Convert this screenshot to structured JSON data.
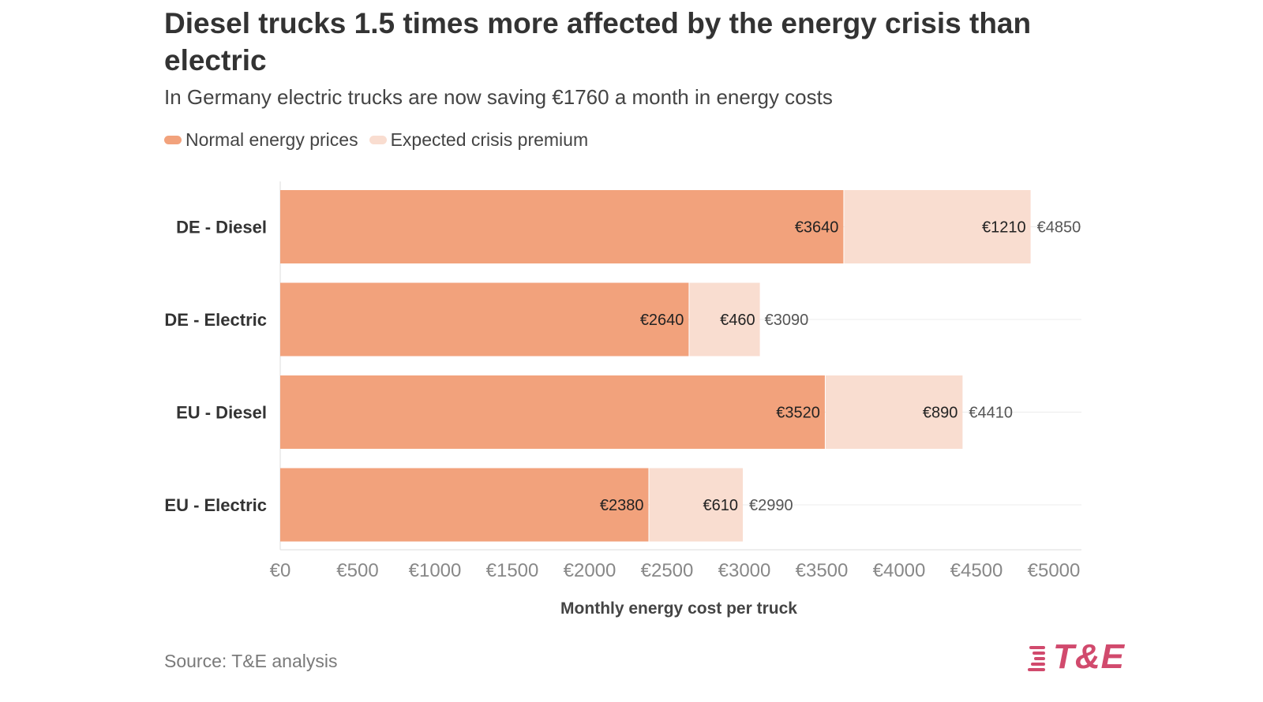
{
  "title": "Diesel trucks 1.5 times more affected by the energy crisis than electric",
  "subtitle": "In Germany electric trucks are now saving €1760 a month in energy costs",
  "source": "Source: T&E analysis",
  "logo_text": "T&E",
  "colors": {
    "normal": "#f2a27c",
    "premium": "#f9ddd0",
    "logo": "#d14a6d"
  },
  "chart_data": {
    "type": "bar",
    "orientation": "horizontal",
    "stacked": true,
    "categories": [
      "DE - Diesel",
      "DE - Electric",
      "EU - Diesel",
      "EU - Electric"
    ],
    "series": [
      {
        "name": "Normal energy prices",
        "values": [
          3640,
          2640,
          3520,
          2380
        ],
        "labels": [
          "€3640",
          "€2640",
          "€3520",
          "€2380"
        ]
      },
      {
        "name": "Expected crisis premium",
        "values": [
          1210,
          460,
          890,
          610
        ],
        "labels": [
          "€1210",
          "€460",
          "€890",
          "€610"
        ]
      }
    ],
    "totals": [
      4850,
      3090,
      4410,
      2990
    ],
    "total_labels": [
      "€4850",
      "€3090",
      "€4410",
      "€2990"
    ],
    "xlabel": "Monthly energy cost per truck",
    "xlim": [
      0,
      5000
    ],
    "xticks": [
      0,
      500,
      1000,
      1500,
      2000,
      2500,
      3000,
      3500,
      4000,
      4500,
      5000
    ],
    "xtick_labels": [
      "€0",
      "€500",
      "€1000",
      "€1500",
      "€2000",
      "€2500",
      "€3000",
      "€3500",
      "€4000",
      "€4500",
      "€5000"
    ],
    "legend_position": "top-left",
    "grid": true
  }
}
